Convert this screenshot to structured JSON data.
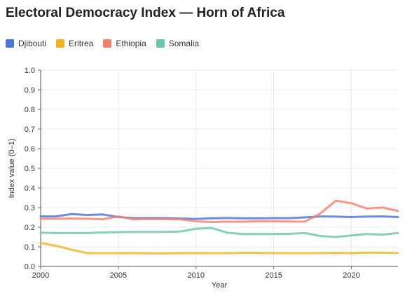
{
  "title": "Electoral Democracy Index — Horn of Africa",
  "chart_data": {
    "type": "line",
    "title": "Electoral Democracy Index — Horn of Africa",
    "xlabel": "Year",
    "ylabel": "Index value (0–1)",
    "xlim": [
      2000,
      2023
    ],
    "ylim": [
      0,
      1
    ],
    "x_ticks": [
      2000,
      2005,
      2010,
      2015,
      2020
    ],
    "y_ticks": [
      "0.0",
      "0.1",
      "0.2",
      "0.3",
      "0.4",
      "0.5",
      "0.6",
      "0.7",
      "0.8",
      "0.9",
      "1.0"
    ],
    "grid": true,
    "legend_position": "top-left",
    "x": [
      2000,
      2001,
      2002,
      2003,
      2004,
      2005,
      2006,
      2007,
      2008,
      2009,
      2010,
      2011,
      2012,
      2013,
      2014,
      2015,
      2016,
      2017,
      2018,
      2019,
      2020,
      2021,
      2022,
      2023
    ],
    "series": [
      {
        "name": "Djibouti",
        "color": "#4e73d6",
        "values": [
          0.255,
          0.255,
          0.267,
          0.262,
          0.265,
          0.252,
          0.246,
          0.246,
          0.246,
          0.244,
          0.242,
          0.245,
          0.247,
          0.245,
          0.245,
          0.246,
          0.246,
          0.25,
          0.255,
          0.254,
          0.252,
          0.254,
          0.255,
          0.252
        ]
      },
      {
        "name": "Eritrea",
        "color": "#f0b323",
        "values": [
          0.12,
          0.105,
          0.085,
          0.068,
          0.068,
          0.068,
          0.068,
          0.067,
          0.067,
          0.068,
          0.068,
          0.068,
          0.068,
          0.069,
          0.069,
          0.068,
          0.068,
          0.068,
          0.068,
          0.069,
          0.068,
          0.07,
          0.07,
          0.068
        ]
      },
      {
        "name": "Ethiopia",
        "color": "#f47f6b",
        "values": [
          0.243,
          0.243,
          0.244,
          0.243,
          0.24,
          0.255,
          0.24,
          0.242,
          0.241,
          0.24,
          0.23,
          0.227,
          0.228,
          0.228,
          0.23,
          0.23,
          0.229,
          0.228,
          0.27,
          0.335,
          0.322,
          0.295,
          0.3,
          0.283
        ]
      },
      {
        "name": "Somalia",
        "color": "#6cc4ad",
        "values": [
          0.172,
          0.17,
          0.17,
          0.17,
          0.173,
          0.175,
          0.176,
          0.176,
          0.176,
          0.178,
          0.192,
          0.196,
          0.172,
          0.165,
          0.165,
          0.165,
          0.166,
          0.17,
          0.155,
          0.15,
          0.158,
          0.165,
          0.162,
          0.17
        ]
      }
    ]
  }
}
